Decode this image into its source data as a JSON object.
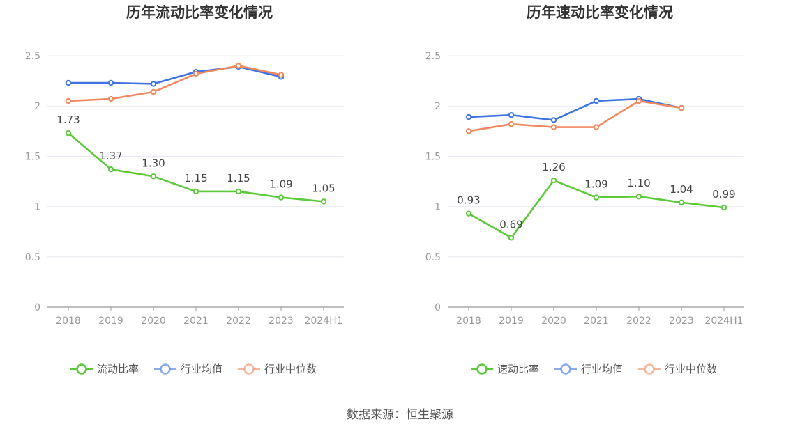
{
  "colors": {
    "main": "#5cc93a",
    "avg": "#3f74e0",
    "median": "#f0895f",
    "grid": "#e8e8f2",
    "axis": "#999999"
  },
  "chart_data": [
    {
      "type": "line",
      "title": "历年流动比率变化情况",
      "categories": [
        "2018",
        "2019",
        "2020",
        "2021",
        "2022",
        "2023",
        "2024H1"
      ],
      "ylim": [
        0,
        2.5
      ],
      "yticks": [
        "0",
        "0.5",
        "1",
        "1.5",
        "2",
        "2.5"
      ],
      "ytick_values": [
        0,
        0.5,
        1,
        1.5,
        2,
        2.5
      ],
      "series": [
        {
          "name": "流动比率",
          "key": "main",
          "values": [
            1.73,
            1.37,
            1.3,
            1.15,
            1.15,
            1.09,
            1.05
          ],
          "labels": [
            "1.73",
            "1.37",
            "1.30",
            "1.15",
            "1.15",
            "1.09",
            "1.05"
          ]
        },
        {
          "name": "行业均值",
          "key": "avg",
          "values": [
            2.23,
            2.23,
            2.22,
            2.34,
            2.39,
            2.29,
            null
          ]
        },
        {
          "name": "行业中位数",
          "key": "median",
          "values": [
            2.05,
            2.07,
            2.14,
            2.32,
            2.4,
            2.31,
            null
          ]
        }
      ],
      "legend": "bottom"
    },
    {
      "type": "line",
      "title": "历年速动比率变化情况",
      "categories": [
        "2018",
        "2019",
        "2020",
        "2021",
        "2022",
        "2023",
        "2024H1"
      ],
      "ylim": [
        0,
        2.5
      ],
      "yticks": [
        "0",
        "0.5",
        "1",
        "1.5",
        "2",
        "2.5"
      ],
      "ytick_values": [
        0,
        0.5,
        1,
        1.5,
        2,
        2.5
      ],
      "series": [
        {
          "name": "速动比率",
          "key": "main",
          "values": [
            0.93,
            0.69,
            1.26,
            1.09,
            1.1,
            1.04,
            0.99
          ],
          "labels": [
            "0.93",
            "0.69",
            "1.26",
            "1.09",
            "1.10",
            "1.04",
            "0.99"
          ]
        },
        {
          "name": "行业均值",
          "key": "avg",
          "values": [
            1.89,
            1.91,
            1.86,
            2.05,
            2.07,
            1.98,
            null
          ]
        },
        {
          "name": "行业中位数",
          "key": "median",
          "values": [
            1.75,
            1.82,
            1.79,
            1.79,
            2.05,
            1.98,
            null
          ]
        }
      ],
      "legend": "bottom"
    }
  ],
  "footer": {
    "source": "数据来源：恒生聚源"
  }
}
